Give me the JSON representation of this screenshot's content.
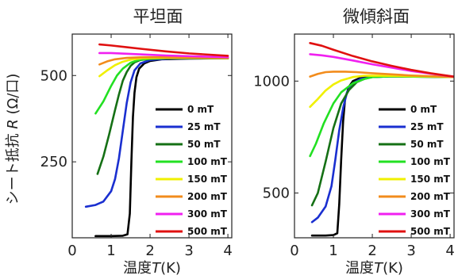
{
  "chart_data": [
    {
      "type": "line",
      "title": "平坦面",
      "xlabel_prefix": "温度",
      "xlabel_var": "T",
      "xlabel_unit": "(K)",
      "ylabel_prefix": "シート抵抗",
      "ylabel_var": "R",
      "ylabel_unit": "(Ω/口)",
      "xlim": [
        0,
        4.1
      ],
      "ylim": [
        30,
        620
      ],
      "xticks": [
        0,
        1,
        2,
        3,
        4
      ],
      "yticks": [
        250,
        500
      ],
      "legend_position": "right",
      "series": [
        {
          "name": "0 mT",
          "color": "#000000",
          "x": [
            0.6,
            1.0,
            1.3,
            1.42,
            1.48,
            1.52,
            1.56,
            1.6,
            1.65,
            1.72,
            1.85,
            2.0,
            2.3,
            3.0,
            4.0
          ],
          "y": [
            35,
            35,
            36,
            40,
            100,
            250,
            380,
            450,
            495,
            520,
            535,
            542,
            547,
            549,
            550
          ]
        },
        {
          "name": "25 mT",
          "color": "#1a2fd0",
          "x": [
            0.35,
            0.6,
            0.8,
            1.0,
            1.1,
            1.2,
            1.3,
            1.4,
            1.5,
            1.6,
            1.75,
            2.0,
            2.5,
            4.0
          ],
          "y": [
            120,
            125,
            135,
            165,
            200,
            260,
            340,
            420,
            480,
            515,
            535,
            545,
            549,
            550
          ]
        },
        {
          "name": "50 mT",
          "color": "#157015",
          "x": [
            0.65,
            0.8,
            0.95,
            1.1,
            1.2,
            1.3,
            1.4,
            1.5,
            1.6,
            1.75,
            2.0,
            2.5,
            4.0
          ],
          "y": [
            215,
            265,
            330,
            400,
            445,
            485,
            510,
            528,
            538,
            545,
            548,
            550,
            550
          ]
        },
        {
          "name": "100 mT",
          "color": "#22e022",
          "x": [
            0.6,
            0.8,
            1.0,
            1.15,
            1.3,
            1.5,
            1.7,
            2.0,
            2.5,
            4.0
          ],
          "y": [
            390,
            425,
            470,
            500,
            520,
            537,
            545,
            549,
            551,
            551
          ]
        },
        {
          "name": "150 mT",
          "color": "#f0f000",
          "x": [
            0.7,
            0.9,
            1.1,
            1.3,
            1.5,
            1.8,
            2.2,
            3.0,
            4.0
          ],
          "y": [
            498,
            515,
            530,
            540,
            546,
            550,
            551,
            551,
            550
          ]
        },
        {
          "name": "200 mT",
          "color": "#f28c1c",
          "x": [
            0.7,
            0.9,
            1.1,
            1.4,
            1.8,
            2.2,
            3.0,
            4.0
          ],
          "y": [
            532,
            541,
            547,
            551,
            553,
            553,
            552,
            551
          ]
        },
        {
          "name": "300 mT",
          "color": "#f020f0",
          "x": [
            0.7,
            1.0,
            1.4,
            1.8,
            2.4,
            3.0,
            4.0
          ],
          "y": [
            565,
            565,
            563,
            561,
            558,
            556,
            553
          ]
        },
        {
          "name": "500 mT",
          "color": "#e01010",
          "x": [
            0.7,
            1.0,
            1.4,
            1.8,
            2.4,
            3.0,
            4.0
          ],
          "y": [
            590,
            587,
            582,
            577,
            570,
            564,
            557
          ]
        }
      ]
    },
    {
      "type": "line",
      "title": "微傾斜面",
      "xlabel_prefix": "温度",
      "xlabel_var": "T",
      "xlabel_unit": "(K)",
      "xlim": [
        0,
        4.1
      ],
      "ylim": [
        300,
        1210
      ],
      "xticks": [
        0,
        1,
        2,
        3,
        4
      ],
      "yticks": [
        500,
        1000
      ],
      "legend_position": "right",
      "series": [
        {
          "name": "0 mT",
          "color": "#000000",
          "x": [
            0.45,
            0.8,
            1.0,
            1.1,
            1.15,
            1.2,
            1.25,
            1.3,
            1.4,
            1.5,
            1.7,
            2.0,
            2.5,
            3.5,
            4.1
          ],
          "y": [
            310,
            310,
            312,
            320,
            450,
            650,
            820,
            920,
            975,
            1000,
            1015,
            1020,
            1022,
            1020,
            1018
          ]
        },
        {
          "name": "25 mT",
          "color": "#1a2fd0",
          "x": [
            0.45,
            0.6,
            0.8,
            0.95,
            1.05,
            1.15,
            1.25,
            1.35,
            1.5,
            1.7,
            2.0,
            2.5,
            4.1
          ],
          "y": [
            370,
            390,
            440,
            530,
            650,
            780,
            880,
            950,
            990,
            1010,
            1018,
            1021,
            1018
          ]
        },
        {
          "name": "50 mT",
          "color": "#157015",
          "x": [
            0.45,
            0.6,
            0.8,
            1.0,
            1.2,
            1.4,
            1.6,
            1.8,
            2.0,
            2.5,
            4.1
          ],
          "y": [
            445,
            500,
            640,
            790,
            900,
            960,
            995,
            1010,
            1018,
            1021,
            1018
          ]
        },
        {
          "name": "100 mT",
          "color": "#22e022",
          "x": [
            0.4,
            0.55,
            0.75,
            1.0,
            1.2,
            1.5,
            1.8,
            2.0,
            2.5,
            4.1
          ],
          "y": [
            665,
            720,
            810,
            900,
            950,
            990,
            1010,
            1018,
            1021,
            1018
          ]
        },
        {
          "name": "150 mT",
          "color": "#f0f000",
          "x": [
            0.4,
            0.6,
            0.8,
            1.0,
            1.2,
            1.5,
            1.8,
            2.2,
            3.0,
            4.1
          ],
          "y": [
            885,
            920,
            958,
            985,
            1003,
            1018,
            1024,
            1024,
            1022,
            1018
          ]
        },
        {
          "name": "200 mT",
          "color": "#f28c1c",
          "x": [
            0.4,
            0.6,
            0.8,
            1.0,
            1.3,
            1.6,
            2.0,
            2.5,
            3.0,
            4.1
          ],
          "y": [
            1020,
            1032,
            1040,
            1042,
            1042,
            1040,
            1035,
            1030,
            1025,
            1018
          ]
        },
        {
          "name": "300 mT",
          "color": "#f020f0",
          "x": [
            0.4,
            0.7,
            1.0,
            1.5,
            2.0,
            2.5,
            3.0,
            3.5,
            4.1
          ],
          "y": [
            1120,
            1115,
            1108,
            1092,
            1075,
            1060,
            1045,
            1033,
            1020
          ]
        },
        {
          "name": "500 mT",
          "color": "#e01010",
          "x": [
            0.4,
            0.7,
            1.0,
            1.5,
            2.0,
            2.5,
            3.0,
            3.5,
            4.1
          ],
          "y": [
            1170,
            1158,
            1140,
            1112,
            1088,
            1068,
            1050,
            1035,
            1020
          ]
        }
      ]
    }
  ]
}
